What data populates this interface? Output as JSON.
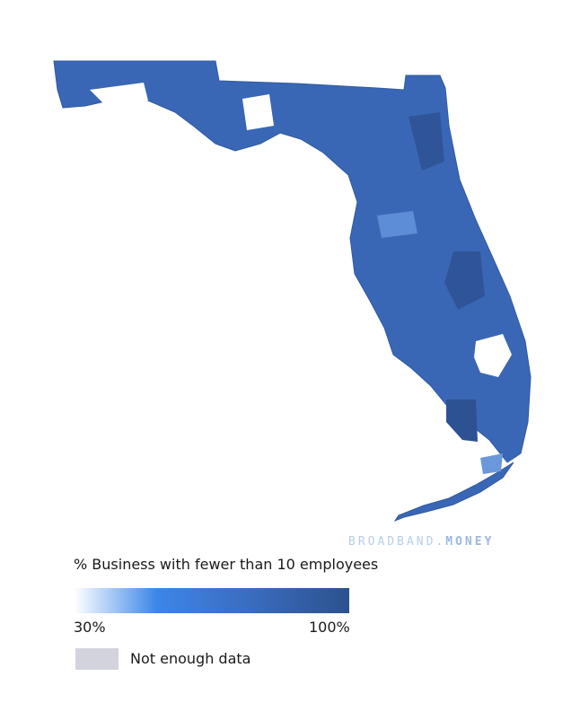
{
  "watermark": {
    "part1": "BROADBAND.",
    "part2": "MONEY"
  },
  "legend": {
    "title": "% Business with fewer than 10 employees",
    "min_label": "30%",
    "max_label": "100%",
    "no_data_label": "Not enough data"
  }
}
